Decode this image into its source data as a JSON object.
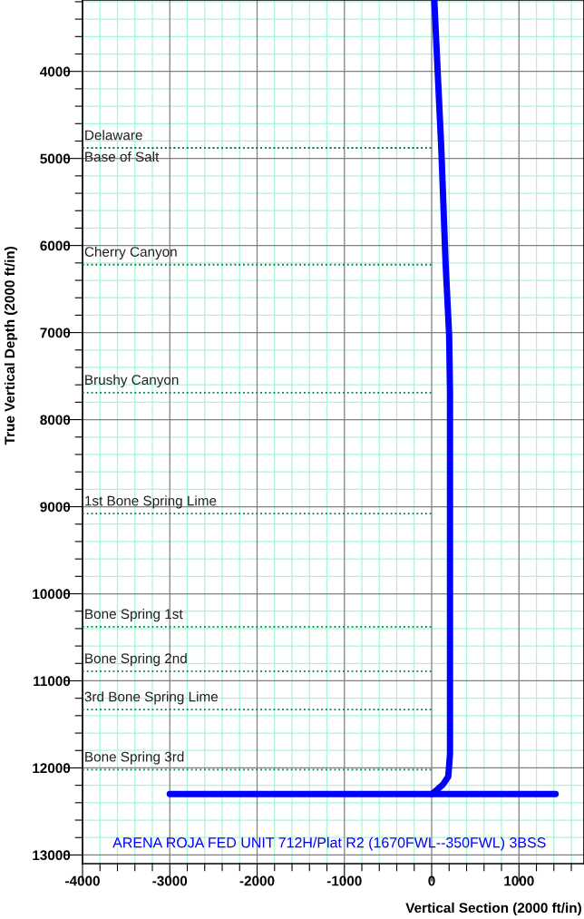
{
  "chart_data": {
    "type": "line",
    "xlabel": "Vertical Section (2000 ft/in)",
    "ylabel": "True Vertical Depth (2000 ft/in)",
    "xlim": [
      -4000,
      1745
    ],
    "ylim": [
      13100,
      3180
    ],
    "xticks": [
      -4000,
      {
        "value": -3800,
        "label": null
      },
      {
        "value": -3600,
        "label": null
      },
      {
        "value": -3400,
        "label": null
      },
      {
        "value": -3200,
        "label": null
      },
      -3000,
      {
        "value": -2800,
        "label": null
      },
      {
        "value": -2600,
        "label": null
      },
      {
        "value": -2400,
        "label": null
      },
      {
        "value": -2200,
        "label": null
      },
      -2000,
      {
        "value": -1800,
        "label": null
      },
      {
        "value": -1600,
        "label": null
      },
      {
        "value": -1400,
        "label": null
      },
      {
        "value": -1200,
        "label": null
      },
      -1000,
      {
        "value": -800,
        "label": null
      },
      {
        "value": -600,
        "label": null
      },
      {
        "value": -400,
        "label": null
      },
      {
        "value": -200,
        "label": null
      },
      0,
      {
        "value": 200,
        "label": null
      },
      {
        "value": 400,
        "label": null
      },
      {
        "value": 600,
        "label": null
      },
      {
        "value": 800,
        "label": null
      },
      1000,
      {
        "value": 1200,
        "label": null
      },
      {
        "value": 1400,
        "label": null
      },
      {
        "value": 1600,
        "label": null
      }
    ],
    "yticks": [
      {
        "value": 3200,
        "label": null
      },
      {
        "value": 3400,
        "label": null
      },
      {
        "value": 3600,
        "label": null
      },
      {
        "value": 3800,
        "label": null
      },
      4000,
      {
        "value": 4200,
        "label": null
      },
      {
        "value": 4400,
        "label": null
      },
      {
        "value": 4600,
        "label": null
      },
      {
        "value": 4800,
        "label": null
      },
      5000,
      {
        "value": 5200,
        "label": null
      },
      {
        "value": 5400,
        "label": null
      },
      {
        "value": 5600,
        "label": null
      },
      {
        "value": 5800,
        "label": null
      },
      6000,
      {
        "value": 6200,
        "label": null
      },
      {
        "value": 6400,
        "label": null
      },
      {
        "value": 6600,
        "label": null
      },
      {
        "value": 6800,
        "label": null
      },
      7000,
      {
        "value": 7200,
        "label": null
      },
      {
        "value": 7400,
        "label": null
      },
      {
        "value": 7600,
        "label": null
      },
      {
        "value": 7800,
        "label": null
      },
      8000,
      {
        "value": 8200,
        "label": null
      },
      {
        "value": 8400,
        "label": null
      },
      {
        "value": 8600,
        "label": null
      },
      {
        "value": 8800,
        "label": null
      },
      9000,
      {
        "value": 9200,
        "label": null
      },
      {
        "value": 9400,
        "label": null
      },
      {
        "value": 9600,
        "label": null
      },
      {
        "value": 9800,
        "label": null
      },
      10000,
      {
        "value": 10200,
        "label": null
      },
      {
        "value": 10400,
        "label": null
      },
      {
        "value": 10600,
        "label": null
      },
      {
        "value": 10800,
        "label": null
      },
      11000,
      {
        "value": 11200,
        "label": null
      },
      {
        "value": 11400,
        "label": null
      },
      {
        "value": 11600,
        "label": null
      },
      {
        "value": 11800,
        "label": null
      },
      12000,
      {
        "value": 12200,
        "label": null
      },
      {
        "value": 12400,
        "label": null
      },
      {
        "value": 12600,
        "label": null
      },
      {
        "value": 12800,
        "label": null
      },
      13000
    ],
    "grid": true,
    "annotations": [
      "ARENA ROJA FED UNIT 712H/Plat R2 (1670FWL--350FWL) 3BSS"
    ],
    "series": [
      {
        "name": "Delaware",
        "line_style": "dotted",
        "color": "#008040",
        "x": [
          -4000,
          0
        ],
        "values": [
          4880,
          4880
        ]
      },
      {
        "name": "Base of Salt",
        "line_style": "dotted",
        "color": "#008040",
        "x": [
          -4000,
          0
        ],
        "values": [
          4880,
          4880
        ]
      },
      {
        "name": "Cherry Canyon",
        "line_style": "dotted",
        "color": "#008040",
        "x": [
          -4000,
          0
        ],
        "values": [
          6220,
          6220
        ]
      },
      {
        "name": "Brushy Canyon",
        "line_style": "dotted",
        "color": "#008040",
        "x": [
          -4000,
          0
        ],
        "values": [
          7690,
          7690
        ]
      },
      {
        "name": "1st Bone Spring Lime",
        "line_style": "dotted",
        "color": "#008040",
        "x": [
          -4000,
          0
        ],
        "values": [
          9080,
          9080
        ]
      },
      {
        "name": "Bone Spring 1st",
        "line_style": "dotted",
        "color": "#008040",
        "x": [
          -4000,
          0
        ],
        "values": [
          10380,
          10380
        ]
      },
      {
        "name": "Bone Spring 2nd",
        "line_style": "dotted",
        "color": "#008040",
        "x": [
          -4000,
          0
        ],
        "values": [
          10890,
          10890
        ]
      },
      {
        "name": "3rd Bone Spring Lime",
        "line_style": "dotted",
        "color": "#008040",
        "x": [
          -4000,
          0
        ],
        "values": [
          11330,
          11330
        ]
      },
      {
        "name": "Bone Spring 3rd",
        "line_style": "dotted",
        "color": "#008040",
        "x": [
          -4000,
          0
        ],
        "values": [
          12020,
          12020
        ]
      },
      {
        "line_style": "solid",
        "color": "#0000ff",
        "x": [
          30,
          110,
          160,
          200,
          210,
          210,
          190,
          130,
          40,
          0
        ],
        "values": [
          3180,
          4880,
          6220,
          7030,
          7690,
          11840,
          12100,
          12190,
          12270,
          12300
        ]
      },
      {
        "line_style": "solid",
        "color": "#0000ff",
        "x": [
          -3000,
          1420
        ],
        "values": [
          12300,
          12300
        ]
      }
    ]
  }
}
